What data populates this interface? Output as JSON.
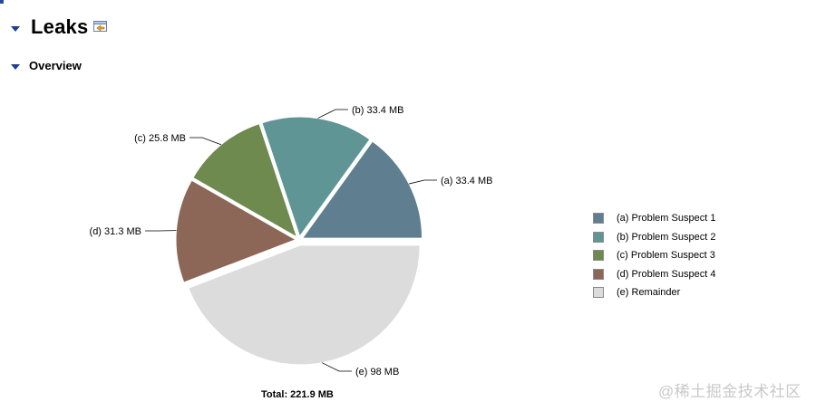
{
  "header": {
    "title": "Leaks"
  },
  "overview": {
    "title": "Overview"
  },
  "chart_data": {
    "type": "pie",
    "categories": [
      "(a) Problem Suspect 1",
      "(b) Problem Suspect 2",
      "(c) Problem Suspect 3",
      "(d) Problem Suspect 4",
      "(e) Remainder"
    ],
    "values": [
      33.4,
      33.4,
      25.8,
      31.3,
      98
    ],
    "slice_labels": [
      "(a)  33.4 MB",
      "(b)  33.4 MB",
      "(c)  25.8 MB",
      "(d)  31.3 MB",
      "(e)  98 MB"
    ],
    "colors": [
      "#5f7f91",
      "#5f9595",
      "#6e8a4f",
      "#8c6657",
      "#dcdcdc"
    ],
    "total_label": "Total: 221.9 MB",
    "legend_position": "right"
  },
  "watermark": "@稀土掘金技术社区"
}
